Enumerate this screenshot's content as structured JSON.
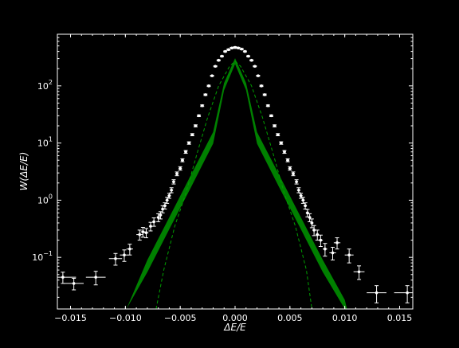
{
  "chart_data": {
    "type": "scatter",
    "title": "",
    "xlabel": "ΔE/E",
    "ylabel": "W(ΔE/E)",
    "xlim": [
      -0.0162,
      0.0162
    ],
    "ylim": [
      0.0125,
      800
    ],
    "yscale": "log",
    "grid": false,
    "colors": {
      "background": "#000000",
      "foreground": "#ffffff",
      "band": "#008000",
      "dashed": "#00a000"
    },
    "xticks": [
      -0.015,
      -0.01,
      -0.005,
      0.0,
      0.005,
      0.01,
      0.015
    ],
    "xtick_labels": [
      "−0.015",
      "−0.010",
      "−0.005",
      "0.000",
      "0.005",
      "0.010",
      "0.015"
    ],
    "yticks": [
      0.1,
      1,
      10,
      100
    ],
    "ytick_labels": [
      [
        "10",
        "−1"
      ],
      [
        "10",
        "0"
      ],
      [
        "10",
        "1"
      ],
      [
        "10",
        "2"
      ]
    ],
    "series": [
      {
        "kind": "points_with_errorbars",
        "x": [
          -0.0157,
          -0.0147,
          -0.0127,
          -0.0109,
          -0.0101,
          -0.0096,
          -0.0087,
          -0.0084,
          -0.0081,
          -0.0077,
          -0.0074,
          -0.007,
          -0.0068,
          -0.0066,
          -0.0064,
          -0.0062,
          -0.006,
          -0.0058,
          -0.0056,
          -0.0053,
          -0.005,
          -0.0048,
          -0.0045,
          -0.0042,
          -0.0039,
          -0.0036,
          -0.0033,
          -0.003,
          -0.0027,
          -0.0024,
          -0.0021,
          -0.0018,
          -0.0015,
          -0.0012,
          -0.0009,
          -0.0006,
          -0.0003,
          0.0,
          0.0003,
          0.0006,
          0.0009,
          0.0012,
          0.0015,
          0.0018,
          0.0021,
          0.0024,
          0.0027,
          0.003,
          0.0033,
          0.0036,
          0.0039,
          0.0042,
          0.0045,
          0.0048,
          0.005,
          0.0053,
          0.0056,
          0.0058,
          0.006,
          0.0062,
          0.0064,
          0.0066,
          0.0068,
          0.007,
          0.0072,
          0.0075,
          0.0078,
          0.0082,
          0.0089,
          0.0093,
          0.0104,
          0.0113,
          0.0129,
          0.0157
        ],
        "y": [
          0.045,
          0.035,
          0.045,
          0.095,
          0.11,
          0.14,
          0.25,
          0.28,
          0.27,
          0.35,
          0.42,
          0.5,
          0.55,
          0.7,
          0.8,
          1.0,
          1.2,
          1.5,
          2.1,
          2.9,
          3.6,
          5.0,
          7.0,
          10,
          14,
          20,
          30,
          45,
          70,
          100,
          150,
          220,
          280,
          330,
          400,
          430,
          460,
          470,
          460,
          440,
          400,
          330,
          280,
          220,
          150,
          100,
          70,
          45,
          30,
          20,
          14,
          10,
          7.0,
          5.0,
          3.6,
          2.9,
          2.1,
          1.5,
          1.2,
          1.0,
          0.8,
          0.6,
          0.5,
          0.4,
          0.3,
          0.25,
          0.2,
          0.14,
          0.12,
          0.18,
          0.11,
          0.056,
          0.024,
          0.024
        ],
        "yerr": [
          0.01,
          0.008,
          0.012,
          0.022,
          0.025,
          0.03,
          0.05,
          0.055,
          0.05,
          0.06,
          0.07,
          0.08,
          0.08,
          0.1,
          0.1,
          0.12,
          0.12,
          0.15,
          0.18,
          0.22,
          0.25,
          0.3,
          0.4,
          0.5,
          0.6,
          0.8,
          1.0,
          1.4,
          2.0,
          2.5,
          3.0,
          4.0,
          5.0,
          6.0,
          8.0,
          10,
          12,
          14,
          12,
          10,
          8.0,
          6.0,
          5.0,
          4.0,
          3.0,
          2.5,
          2.0,
          1.4,
          1.0,
          0.8,
          0.6,
          0.5,
          0.4,
          0.3,
          0.25,
          0.22,
          0.18,
          0.15,
          0.12,
          0.12,
          0.1,
          0.09,
          0.08,
          0.07,
          0.06,
          0.05,
          0.045,
          0.035,
          0.03,
          0.04,
          0.03,
          0.015,
          0.008,
          0.008
        ],
        "xerr": [
          0.0012,
          0.0009,
          0.0009,
          0.0006,
          0.0004,
          0.0003,
          0.0003,
          0.0002,
          0.0002,
          0.00015,
          0.00015,
          0.00015,
          0.00015,
          0.00015,
          0.00015,
          0.00015,
          0.00015,
          0.00015,
          0.00015,
          0.00015,
          0.00015,
          0.00015,
          0.00015,
          0.00015,
          0.00015,
          0.00015,
          0.00015,
          0.00015,
          0.00015,
          0.00015,
          0.00015,
          0.00015,
          0.00015,
          0.00015,
          0.00015,
          0.00015,
          0.00015,
          0.00015,
          0.00015,
          0.00015,
          0.00015,
          0.00015,
          0.00015,
          0.00015,
          0.00015,
          0.00015,
          0.00015,
          0.00015,
          0.00015,
          0.00015,
          0.00015,
          0.00015,
          0.00015,
          0.00015,
          0.00015,
          0.00015,
          0.00015,
          0.00015,
          0.00015,
          0.00015,
          0.00015,
          0.00015,
          0.00015,
          0.00015,
          0.00015,
          0.00015,
          0.0002,
          0.0002,
          0.0003,
          0.0003,
          0.0004,
          0.0005,
          0.0009,
          0.0012
        ]
      },
      {
        "kind": "band",
        "x": [
          -0.0099,
          -0.008,
          -0.006,
          -0.004,
          -0.002,
          -0.001,
          0.0,
          0.001,
          0.002,
          0.004,
          0.006,
          0.008,
          0.01,
          0.0102
        ],
        "y_low": [
          0.0125,
          0.055,
          0.31,
          1.7,
          9.8,
          84,
          240,
          84,
          9.8,
          1.7,
          0.31,
          0.055,
          0.0125,
          0.0125
        ],
        "y_high": [
          0.0125,
          0.09,
          0.5,
          2.8,
          15.6,
          112,
          305,
          112,
          15.6,
          2.8,
          0.5,
          0.09,
          0.018,
          0.0125
        ]
      },
      {
        "kind": "dashed_line",
        "x": [
          -0.0072,
          -0.0065,
          -0.0055,
          -0.0045,
          -0.0035,
          -0.0025,
          -0.0015,
          -0.0005,
          0.0,
          0.0005,
          0.0015,
          0.0025,
          0.0035,
          0.0045,
          0.0055,
          0.0065,
          0.007
        ],
        "y": [
          0.0125,
          0.06,
          0.35,
          1.3,
          6.2,
          28,
          100,
          220,
          270,
          220,
          100,
          28,
          6.2,
          1.3,
          0.35,
          0.06,
          0.0125
        ]
      }
    ]
  }
}
